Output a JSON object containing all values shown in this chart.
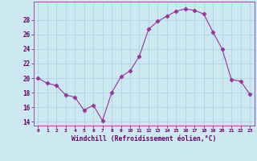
{
  "x": [
    0,
    1,
    2,
    3,
    4,
    5,
    6,
    7,
    8,
    9,
    10,
    11,
    12,
    13,
    14,
    15,
    16,
    17,
    18,
    19,
    20,
    21,
    22,
    23
  ],
  "y": [
    20.0,
    19.3,
    19.0,
    17.7,
    17.4,
    15.6,
    16.3,
    14.2,
    18.0,
    20.2,
    21.0,
    23.0,
    26.7,
    27.8,
    28.5,
    29.2,
    29.5,
    29.3,
    28.8,
    26.3,
    24.0,
    19.8,
    19.6,
    17.8
  ],
  "line_color": "#993399",
  "marker": "D",
  "marker_size": 2.5,
  "bg_color": "#cce8f0",
  "grid_color": "#aacfda",
  "xlabel": "Windchill (Refroidissement éolien,°C)",
  "xlabel_color": "#660066",
  "ylabel_ticks": [
    14,
    16,
    18,
    20,
    22,
    24,
    26,
    28
  ],
  "xtick_labels": [
    "0",
    "1",
    "2",
    "3",
    "4",
    "5",
    "6",
    "7",
    "8",
    "9",
    "10",
    "11",
    "12",
    "13",
    "14",
    "15",
    "16",
    "17",
    "18",
    "19",
    "20",
    "21",
    "22",
    "23"
  ],
  "ylim": [
    13.5,
    30.5
  ],
  "xlim": [
    -0.5,
    23.5
  ],
  "tick_color": "#660066",
  "spine_color": "#993399"
}
